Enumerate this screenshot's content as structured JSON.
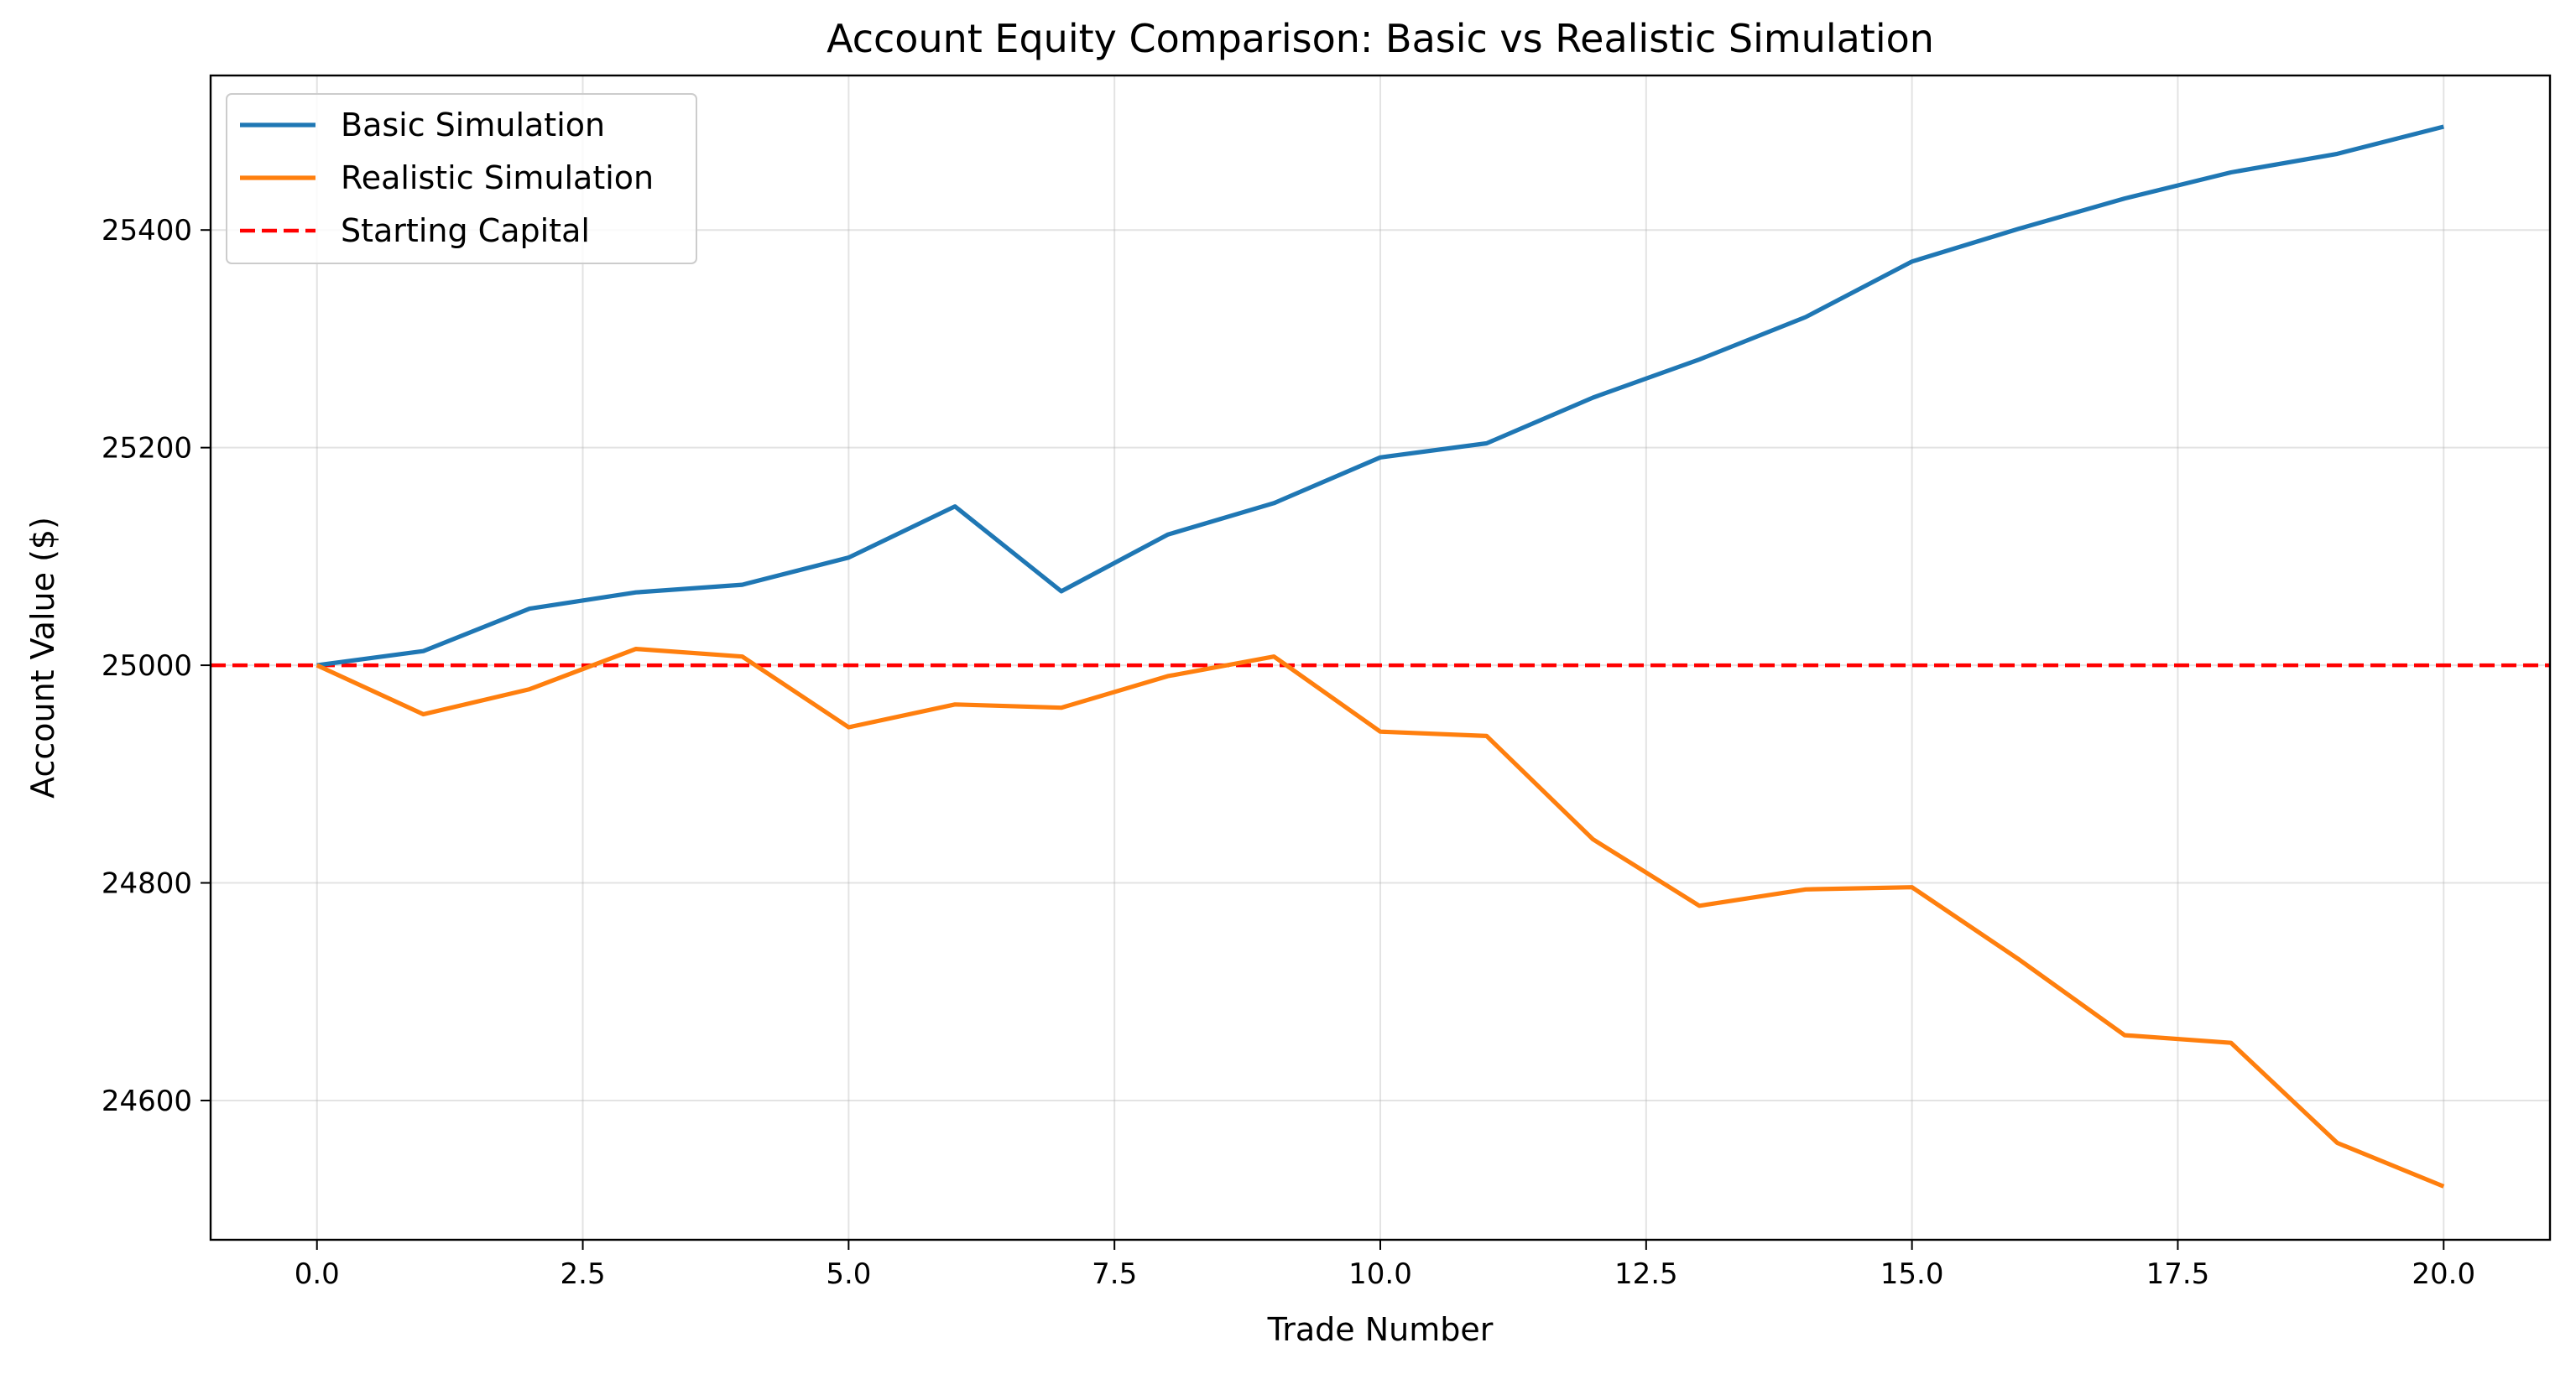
{
  "chart_data": {
    "type": "line",
    "title": "Account Equity Comparison: Basic vs Realistic Simulation",
    "xlabel": "Trade Number",
    "ylabel": "Account Value ($)",
    "xlim": [
      -1,
      21
    ],
    "ylim": [
      24472,
      25542
    ],
    "xticks": [
      0.0,
      2.5,
      5.0,
      7.5,
      10.0,
      12.5,
      15.0,
      17.5,
      20.0
    ],
    "xtick_labels": [
      "0.0",
      "2.5",
      "5.0",
      "7.5",
      "10.0",
      "12.5",
      "15.0",
      "17.5",
      "20.0"
    ],
    "yticks": [
      24600,
      24800,
      25000,
      25200,
      25400
    ],
    "ytick_labels": [
      "24600",
      "24800",
      "25000",
      "25200",
      "25400"
    ],
    "grid": true,
    "legend_position": "top-left",
    "x": [
      0,
      1,
      2,
      3,
      4,
      5,
      6,
      7,
      8,
      9,
      10,
      11,
      12,
      13,
      14,
      15,
      16,
      17,
      18,
      19,
      20
    ],
    "series": [
      {
        "name": "Basic Simulation",
        "color": "#1f77b4",
        "style": "solid",
        "values": [
          25000,
          25013,
          25052,
          25067,
          25074,
          25099,
          25146,
          25068,
          25120,
          25149,
          25191,
          25204,
          25246,
          25281,
          25320,
          25371,
          25401,
          25429,
          25453,
          25470,
          25495
        ]
      },
      {
        "name": "Realistic Simulation",
        "color": "#ff7f0e",
        "style": "solid",
        "values": [
          25000,
          24955,
          24978,
          25015,
          25008,
          24943,
          24964,
          24961,
          24990,
          25008,
          24939,
          24935,
          24840,
          24779,
          24794,
          24796,
          24730,
          24660,
          24653,
          24561,
          24521
        ]
      }
    ],
    "reference_lines": [
      {
        "name": "Starting Capital",
        "y": 25000,
        "color": "#ff0000",
        "style": "dashed"
      }
    ]
  }
}
